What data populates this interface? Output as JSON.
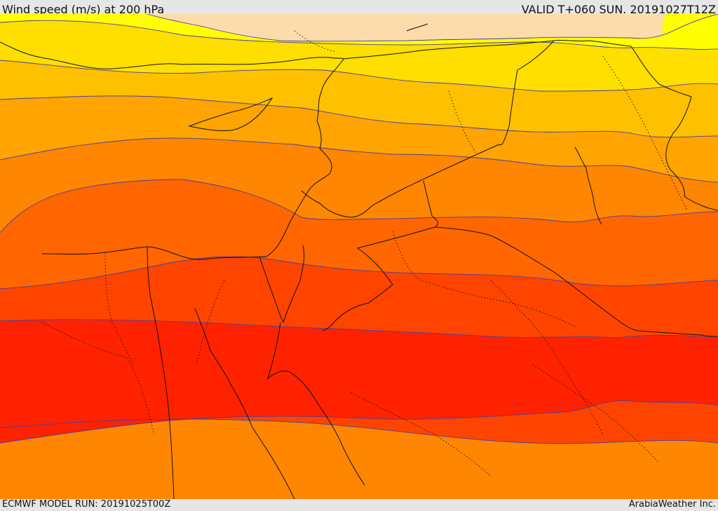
{
  "header": {
    "title": "Wind speed (m/s) at 200 hPa",
    "valid_time": "VALID T+060 SUN. 20191027T12Z"
  },
  "footer": {
    "model_run": "ECMWF MODEL RUN: 20191025T00Z",
    "credit": "ArabiaWeather Inc."
  },
  "map": {
    "colors": {
      "light_peach": "#fddcab",
      "yellow": "#ffff00",
      "gold": "#ffdf00",
      "amber": "#ffc000",
      "orange_light": "#ffa400",
      "orange": "#ff8600",
      "orange_dark": "#ff6600",
      "red_orange": "#ff4400",
      "red": "#ff2200",
      "border": "#111111",
      "contour": "#4a3fa0"
    }
  }
}
